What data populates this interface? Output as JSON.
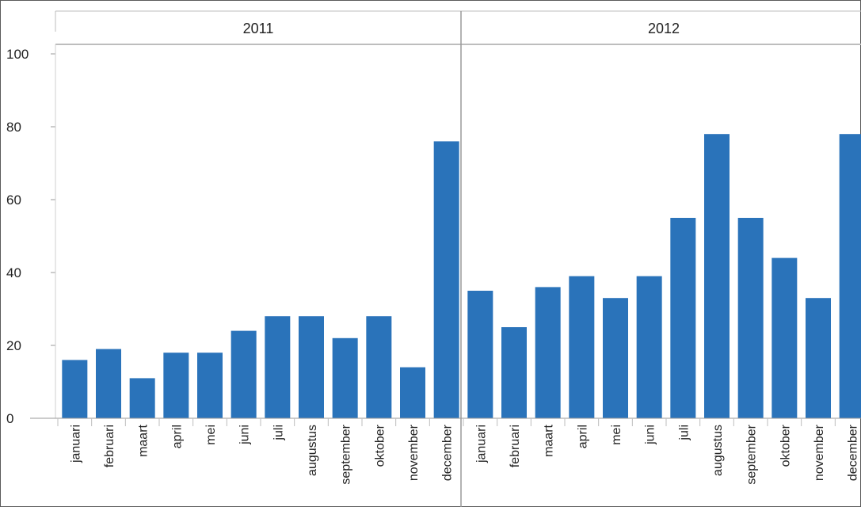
{
  "chart_data": {
    "type": "bar",
    "title": "",
    "xlabel": "",
    "ylabel": "",
    "ylim": [
      0,
      100
    ],
    "yticks": [
      0,
      20,
      40,
      60,
      80,
      100
    ],
    "grid": false,
    "legend": "none",
    "bar_color": "#2a73ba",
    "panels": [
      {
        "header": "2011",
        "categories": [
          "januari",
          "februari",
          "maart",
          "april",
          "mei",
          "juni",
          "juli",
          "augustus",
          "september",
          "oktober",
          "november",
          "december"
        ],
        "values": [
          16,
          19,
          11,
          18,
          18,
          24,
          28,
          28,
          22,
          28,
          14,
          76
        ]
      },
      {
        "header": "2012",
        "categories": [
          "januari",
          "februari",
          "maart",
          "april",
          "mei",
          "juni",
          "juli",
          "augustus",
          "september",
          "oktober",
          "november",
          "december"
        ],
        "values": [
          35,
          25,
          36,
          39,
          33,
          39,
          55,
          78,
          55,
          44,
          33,
          78
        ]
      }
    ]
  }
}
